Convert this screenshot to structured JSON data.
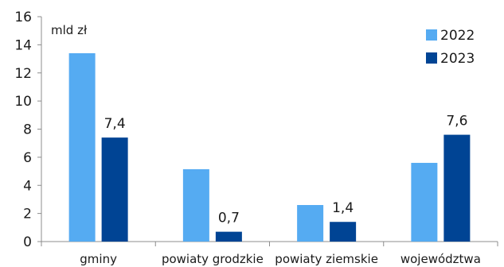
{
  "chart_data": {
    "type": "bar",
    "unit_label": "mld zł",
    "categories": [
      "gminy",
      "powiaty grodzkie",
      "powiaty ziemskie",
      "województwa"
    ],
    "series": [
      {
        "name": "2022",
        "values": [
          13.4,
          5.15,
          2.6,
          5.6
        ],
        "value_labels": [
          "",
          "",
          "",
          ""
        ]
      },
      {
        "name": "2023",
        "values": [
          7.4,
          0.7,
          1.4,
          7.6
        ],
        "value_labels": [
          "7,4",
          "0,7",
          "1,4",
          "7,6"
        ]
      }
    ],
    "ylim": [
      0,
      16
    ],
    "yticks": [
      "0",
      "2",
      "4",
      "6",
      "8",
      "10",
      "12",
      "14",
      "16"
    ],
    "legend_position": "top-right",
    "grid": false,
    "colors": {
      "2022": "#55abf2",
      "2023": "#004494"
    }
  }
}
